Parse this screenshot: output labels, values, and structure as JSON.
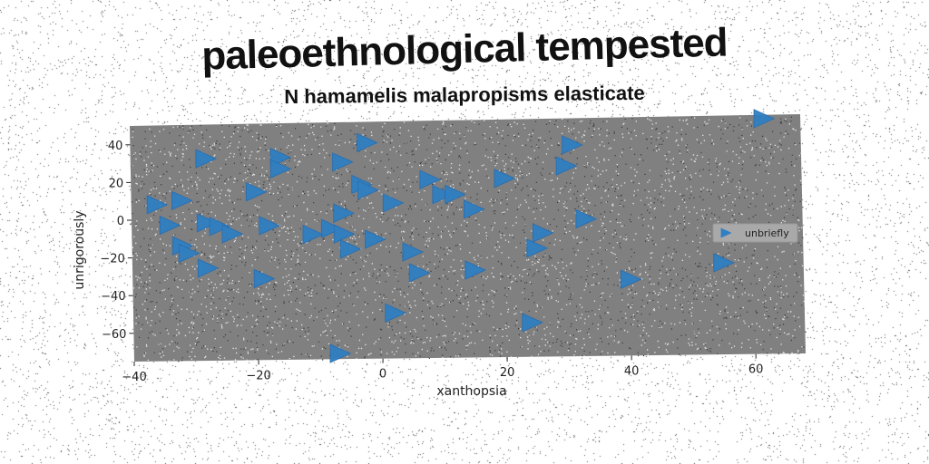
{
  "chart_data": {
    "type": "scatter",
    "title": "paleoethnological tempested",
    "subtitle": "N hamamelis malapropisms elasticate",
    "xlabel": "xanthopsia",
    "ylabel": "unrigorously",
    "xlim": [
      -40,
      68
    ],
    "ylim": [
      -75,
      50
    ],
    "xticks": [
      -40,
      -20,
      0,
      20,
      40,
      60
    ],
    "yticks": [
      40,
      20,
      0,
      -20,
      -40,
      -60
    ],
    "grid": false,
    "legend_position": "right",
    "marker": "triangle-right",
    "colors": {
      "marker": "#2f7fc2",
      "plot_bg": "#808080"
    },
    "series": [
      {
        "name": "unbriefly",
        "points": [
          [
            62,
            48
          ],
          [
            -28,
            32
          ],
          [
            -16,
            32
          ],
          [
            -6,
            29
          ],
          [
            -2,
            39
          ],
          [
            31,
            36
          ],
          [
            -16,
            26
          ],
          [
            30,
            25
          ],
          [
            -20,
            14
          ],
          [
            -3,
            17
          ],
          [
            -2,
            14
          ],
          [
            8,
            19
          ],
          [
            20,
            19
          ],
          [
            10,
            11
          ],
          [
            12,
            11
          ],
          [
            -36,
            8
          ],
          [
            -32,
            10
          ],
          [
            2,
            7
          ],
          [
            15,
            3
          ],
          [
            -6,
            2
          ],
          [
            -34,
            -3
          ],
          [
            -28,
            -2
          ],
          [
            -26,
            -4
          ],
          [
            -18,
            -4
          ],
          [
            -8,
            -6
          ],
          [
            33,
            -3
          ],
          [
            -24,
            -8
          ],
          [
            -11,
            -9
          ],
          [
            -6,
            -9
          ],
          [
            -1,
            -12
          ],
          [
            26,
            -10
          ],
          [
            -32,
            -14
          ],
          [
            -31,
            -18
          ],
          [
            -5,
            -17
          ],
          [
            5,
            -19
          ],
          [
            25,
            -18
          ],
          [
            -28,
            -26
          ],
          [
            -19,
            -32
          ],
          [
            6,
            -30
          ],
          [
            15,
            -29
          ],
          [
            55,
            -27
          ],
          [
            40,
            -35
          ],
          [
            2,
            -51
          ],
          [
            24,
            -57
          ],
          [
            -7,
            -72
          ]
        ]
      }
    ]
  }
}
